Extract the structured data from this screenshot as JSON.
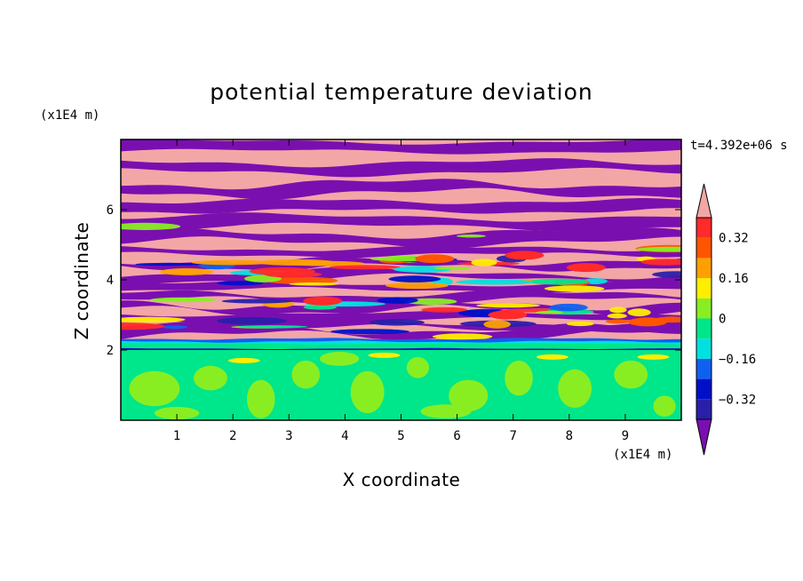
{
  "chart_data": {
    "type": "heatmap",
    "title": "potential temperature deviation",
    "xlabel": "X coordinate",
    "ylabel": "Z coordinate",
    "x_unit": "(x1E4 m)",
    "y_unit": "(x1E4 m)",
    "time_label": "t=4.392e+06 s",
    "xlim": [
      0,
      10
    ],
    "ylim": [
      0,
      8
    ],
    "x_ticks": [
      1,
      2,
      3,
      4,
      5,
      6,
      7,
      8,
      9
    ],
    "y_ticks": [
      2,
      4,
      6
    ],
    "colorbar": {
      "tick_labels": [
        "0.32",
        "0.16",
        "0",
        "−0.16",
        "−0.32"
      ],
      "tick_values": [
        0.32,
        0.16,
        0,
        -0.16,
        -0.32
      ],
      "levels": [
        -0.4,
        -0.32,
        -0.24,
        -0.16,
        -0.08,
        0,
        0.08,
        0.16,
        0.24,
        0.32,
        0.4
      ],
      "colors": [
        "#7a0fb0",
        "#2a1faa",
        "#0010c8",
        "#1060f0",
        "#00e0e0",
        "#00e68a",
        "#88ee22",
        "#ffee00",
        "#ffa000",
        "#ff5500",
        "#ff2a2a",
        "#f3a6a6"
      ],
      "extend": "both"
    },
    "regions": [
      {
        "z_range": [
          0,
          2
        ],
        "pattern": "mixed layer",
        "dominant_values": [
          0,
          0.08
        ]
      },
      {
        "z_range": [
          2,
          2.3
        ],
        "pattern": "thin band",
        "dominant_values": [
          0
        ]
      },
      {
        "z_range": [
          2.3,
          4.5
        ],
        "pattern": "banded with turbulent mixing",
        "dominant_values": [
          -0.4,
          0.4
        ]
      },
      {
        "z_range": [
          4.5,
          8
        ],
        "pattern": "alternating horizontal bands",
        "dominant_values": [
          -0.4,
          0.4
        ]
      }
    ]
  }
}
